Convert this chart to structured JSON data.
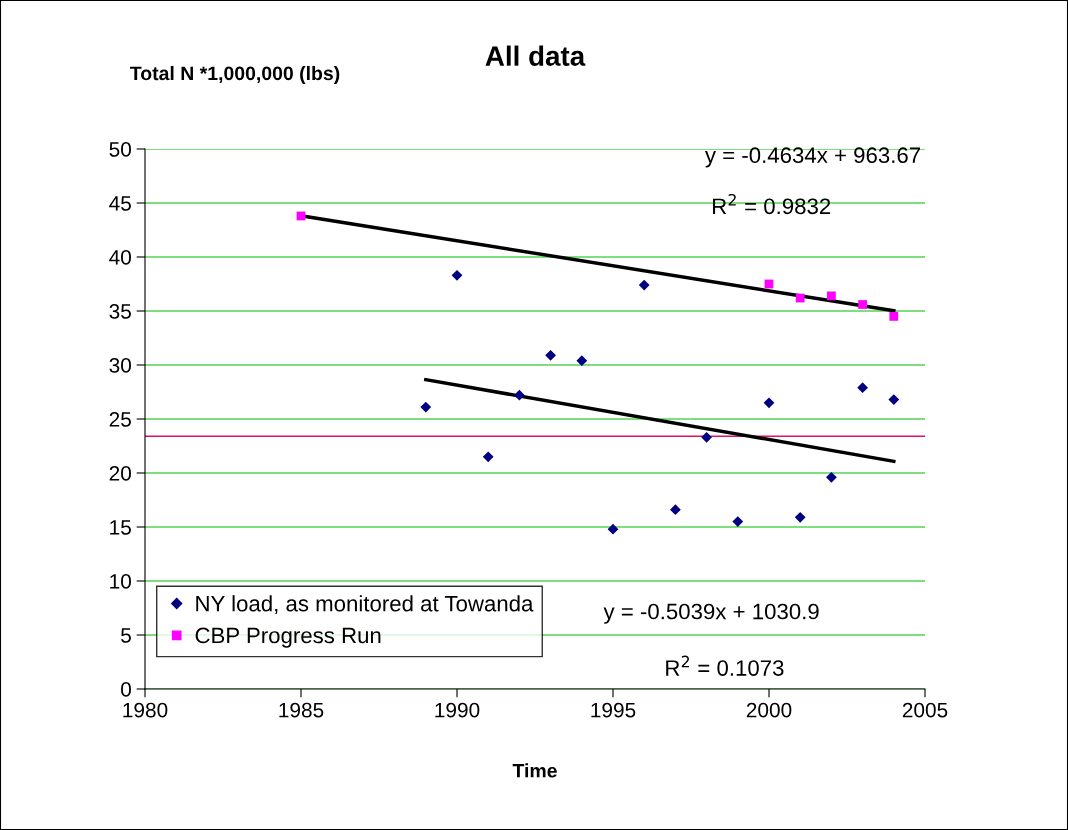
{
  "chart_data": {
    "type": "scatter",
    "title": "All data",
    "xlabel": "Time",
    "ylabel": "Total N *1,000,000 (lbs)",
    "series": [
      {
        "name": "NY load, as monitored at Towanda",
        "color": "#000080",
        "marker": "diamond",
        "x": [
          1989,
          1990,
          1991,
          1992,
          1993,
          1994,
          1995,
          1996,
          1997,
          1998,
          1999,
          2000,
          2001,
          2002,
          2003,
          2004
        ],
        "values": [
          26.1,
          38.3,
          21.5,
          27.2,
          30.9,
          30.4,
          14.8,
          37.4,
          16.6,
          23.3,
          15.5,
          26.5,
          15.9,
          19.6,
          27.9,
          26.8
        ]
      },
      {
        "name": "CBP Progress Run",
        "color": "#ff00ff",
        "marker": "square",
        "x": [
          1985,
          2000,
          2001,
          2002,
          2003,
          2004
        ],
        "values": [
          43.8,
          37.5,
          36.2,
          36.4,
          35.6,
          34.5
        ]
      },
      {
        "type": "line",
        "color": "#000000",
        "x": [
          1985,
          2004
        ],
        "values": [
          43.82,
          35.02
        ]
      },
      {
        "type": "line",
        "color": "#000000",
        "x": [
          1989,
          2004
        ],
        "values": [
          28.64,
          21.08
        ]
      }
    ],
    "ref_lines": [
      {
        "axis": "y",
        "value": 23.4,
        "color": "#e0106a"
      }
    ],
    "annotations": [
      "y = -0.4634x + 963.67",
      "R$^{2}$ = 0.9832",
      "y = -0.5039x + 1030.9",
      "R$^{2}$ = 0.1073"
    ],
    "xlim": [
      1980,
      2005
    ],
    "xticks": [
      1980,
      1985,
      1990,
      1995,
      2000,
      2005
    ],
    "ylim": [
      0,
      50
    ],
    "yticks": [
      0,
      5,
      10,
      15,
      20,
      25,
      30,
      35,
      40,
      45,
      50
    ],
    "grid": "y",
    "legend": "bottom left"
  }
}
